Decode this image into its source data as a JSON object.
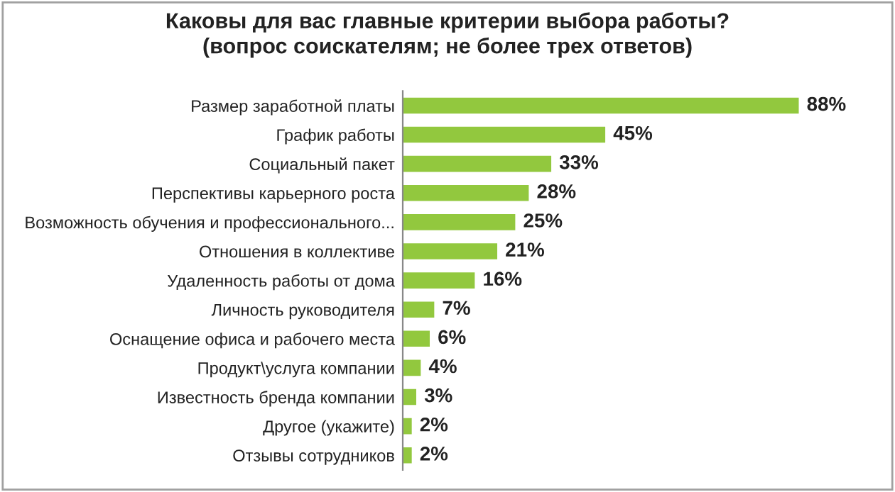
{
  "chart_data": {
    "type": "bar",
    "orientation": "horizontal",
    "title": "Каковы для вас главные критерии выбора работы?\n(вопрос соискателям; не более трех ответов)",
    "categories": [
      "Размер заработной платы",
      "График работы",
      "Социальный пакет",
      "Перспективы карьерного роста",
      "Возможность обучения и профессионального...",
      "Отношения в коллективе",
      "Удаленность работы от дома",
      "Личность руководителя",
      "Оснащение офиса и рабочего места",
      "Продукт\\услуга компании",
      "Известность бренда компании",
      "Другое (укажите)",
      "Отзывы сотрудников"
    ],
    "values": [
      88,
      45,
      33,
      28,
      25,
      21,
      16,
      7,
      6,
      4,
      3,
      2,
      2
    ],
    "value_labels": [
      "88%",
      "45%",
      "33%",
      "28%",
      "25%",
      "21%",
      "16%",
      "7%",
      "6%",
      "4%",
      "3%",
      "2%",
      "2%"
    ],
    "color": "#92c83e"
  }
}
